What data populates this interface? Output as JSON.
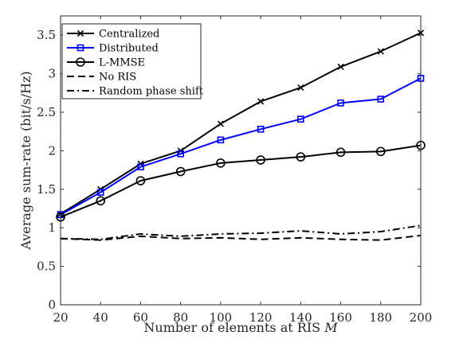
{
  "chart_data": {
    "type": "line",
    "xlabel": "Number of elements at RIS",
    "xlabel_var": "M",
    "ylabel": "Average sum-rate (bit/s/Hz)",
    "x": [
      20,
      40,
      60,
      80,
      100,
      120,
      140,
      160,
      180,
      200
    ],
    "xlim": [
      20,
      200
    ],
    "ylim": [
      0,
      3.75
    ],
    "xticks": [
      20,
      40,
      60,
      80,
      100,
      120,
      140,
      160,
      180,
      200
    ],
    "yticks": [
      0,
      0.5,
      1,
      1.5,
      2,
      2.5,
      3,
      3.5
    ],
    "ytick_labels": [
      "0",
      "0.5",
      "1",
      "1.5",
      "2",
      "2.5",
      "3",
      "3.5"
    ],
    "grid": false,
    "legend_position": "top-left",
    "series": [
      {
        "name": "Centralized",
        "color": "#000000",
        "marker": "x",
        "dash": "solid",
        "values": [
          1.18,
          1.5,
          1.83,
          2.0,
          2.35,
          2.64,
          2.82,
          3.09,
          3.29,
          3.53
        ]
      },
      {
        "name": "Distributed",
        "color": "#0000ff",
        "marker": "square",
        "dash": "solid",
        "values": [
          1.17,
          1.46,
          1.79,
          1.96,
          2.14,
          2.28,
          2.41,
          2.62,
          2.67,
          2.94
        ]
      },
      {
        "name": "L-MMSE",
        "color": "#000000",
        "marker": "circle",
        "dash": "solid",
        "values": [
          1.14,
          1.35,
          1.61,
          1.73,
          1.84,
          1.88,
          1.92,
          1.98,
          1.99,
          2.07
        ]
      },
      {
        "name": "No RIS",
        "color": "#000000",
        "marker": "none",
        "dash": "dashed",
        "values": [
          0.86,
          0.84,
          0.89,
          0.86,
          0.87,
          0.85,
          0.87,
          0.85,
          0.84,
          0.9
        ]
      },
      {
        "name": "Random phase shift",
        "color": "#000000",
        "marker": "none",
        "dash": "dashdot",
        "values": [
          0.86,
          0.85,
          0.92,
          0.89,
          0.92,
          0.93,
          0.96,
          0.92,
          0.95,
          1.03
        ]
      }
    ]
  }
}
